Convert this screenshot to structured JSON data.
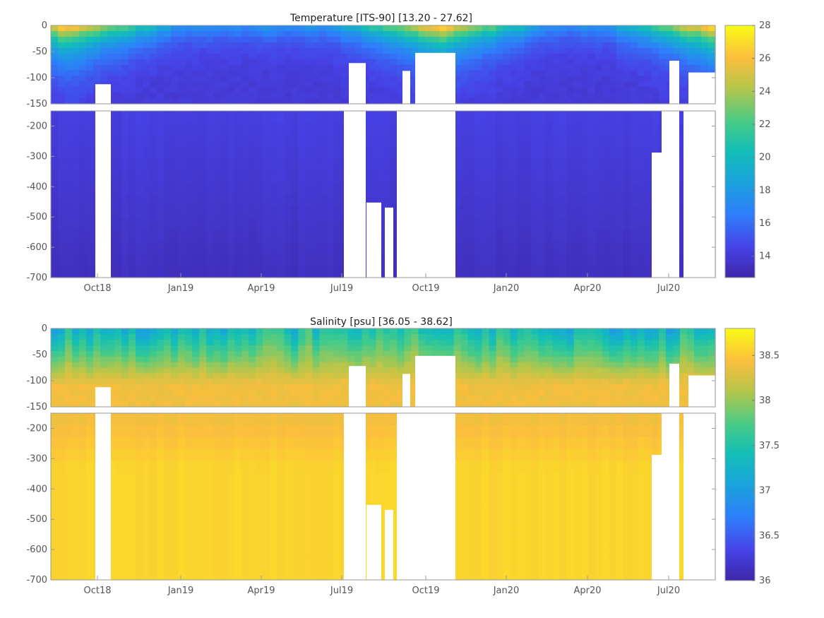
{
  "chart_data": [
    {
      "type": "heatmap",
      "title": "Temperature [ITS-90]   [13.20 - 27.62]",
      "variable": "Temperature",
      "units": "ITS-90",
      "data_range": [
        13.2,
        27.62
      ],
      "upper_panel": {
        "ylim": [
          -150,
          0
        ],
        "yticks": [
          "0",
          "-50",
          "-100",
          "-150"
        ]
      },
      "lower_panel": {
        "ylim": [
          -700,
          -150
        ],
        "yticks": [
          "-200",
          "-300",
          "-400",
          "-500",
          "-600",
          "-700"
        ]
      },
      "xticks": [
        "Oct18",
        "Jan19",
        "Apr19",
        "Jul19",
        "Oct19",
        "Jan20",
        "Apr20",
        "Jul20"
      ],
      "colorbar": {
        "range": [
          12.7,
          28
        ],
        "ticks": [
          "28",
          "26",
          "24",
          "22",
          "20",
          "18",
          "16",
          "14"
        ]
      },
      "colormap": "parula",
      "surface_value_summer": 27,
      "deep_value": 13.5,
      "grid": false
    },
    {
      "type": "heatmap",
      "title": "Salinity [psu]   [36.05 - 38.62]",
      "variable": "Salinity",
      "units": "psu",
      "data_range": [
        36.05,
        38.62
      ],
      "upper_panel": {
        "ylim": [
          -150,
          0
        ],
        "yticks": [
          "0",
          "-50",
          "-100",
          "-150"
        ]
      },
      "lower_panel": {
        "ylim": [
          -700,
          -150
        ],
        "yticks": [
          "-200",
          "-300",
          "-400",
          "-500",
          "-600",
          "-700"
        ]
      },
      "xticks": [
        "Oct18",
        "Jan19",
        "Apr19",
        "Jul19",
        "Oct19",
        "Jan20",
        "Apr20",
        "Jul20"
      ],
      "colorbar": {
        "range": [
          36,
          38.8
        ],
        "ticks": [
          "38.5",
          "38",
          "37.5",
          "37",
          "36.5",
          "36"
        ]
      },
      "colormap": "parula",
      "surface_value": 37.2,
      "deep_value": 38.55,
      "grid": false
    }
  ]
}
